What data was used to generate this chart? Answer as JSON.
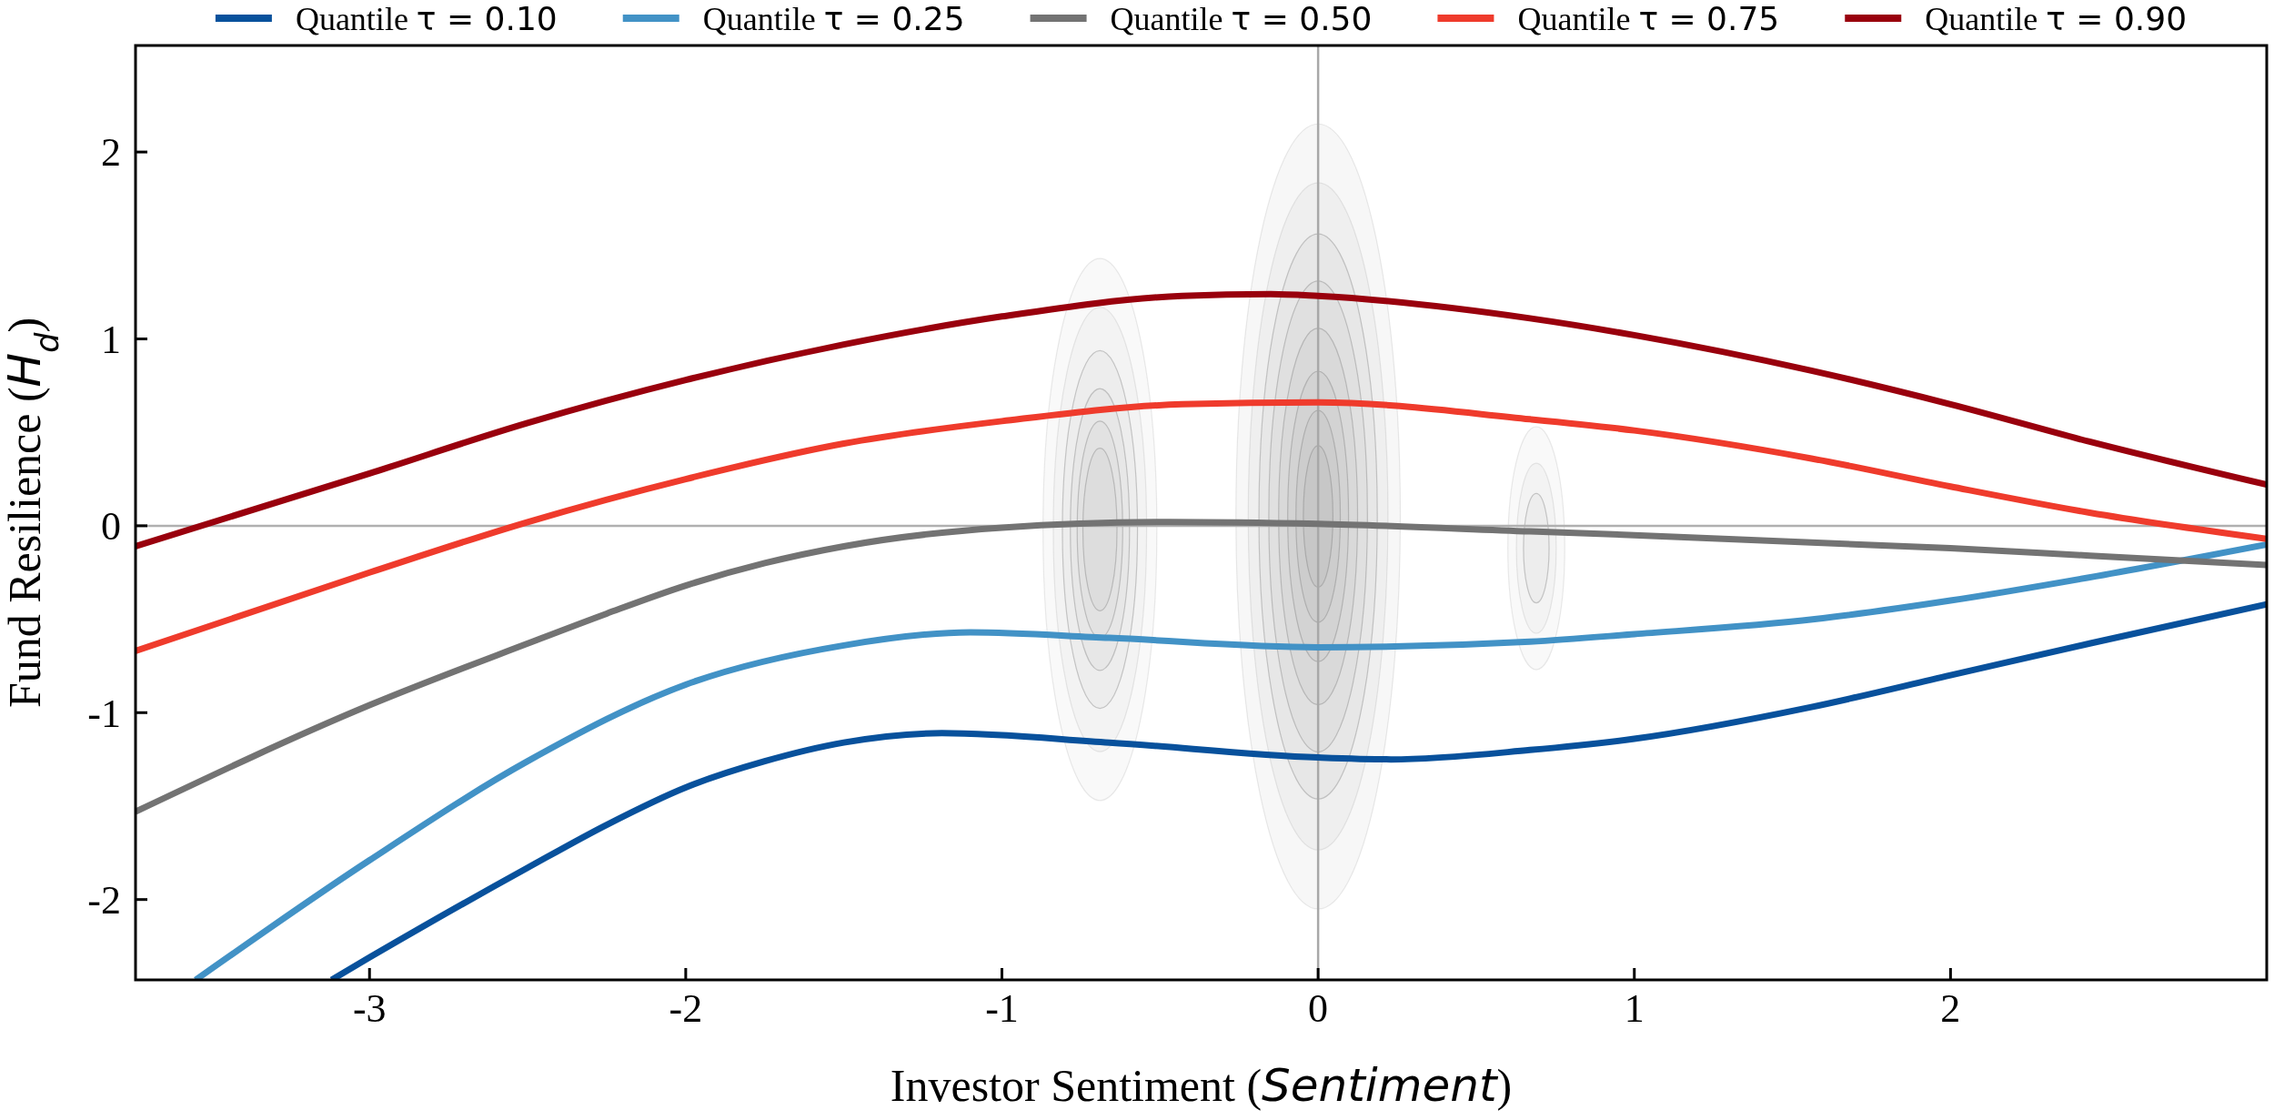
{
  "chart_data": {
    "type": "line",
    "xlabel": "Investor Sentiment (Sentiment)",
    "ylabel": "Fund Resilience (H$_{d}$)",
    "xlim": [
      -3.74,
      3.0
    ],
    "ylim": [
      -2.43,
      2.57
    ],
    "xticks": [
      -3,
      -2,
      -1,
      0,
      1,
      2
    ],
    "yticks": [
      -2,
      -1,
      0,
      1,
      2
    ],
    "grid": false,
    "legend": "top",
    "line_style": "solid",
    "ref_lines": [
      {
        "axis": "y",
        "value": 0,
        "color": "#b0b0b0"
      },
      {
        "axis": "x",
        "value": 0,
        "color": "#a8a8a8"
      }
    ],
    "series": [
      {
        "name": "Quantile τ = 0.10",
        "color": "#08519c",
        "x": [
          -3.12,
          -3.0,
          -2.5,
          -2.25,
          -2.0,
          -1.75,
          -1.5,
          -1.19,
          -0.66,
          0,
          0.23,
          0.67,
          1.0,
          1.56,
          2.0,
          2.44,
          3.0
        ],
        "values": [
          -2.43,
          -2.31,
          -1.83,
          -1.6,
          -1.4,
          -1.26,
          -1.16,
          -1.11,
          -1.16,
          -1.24,
          -1.25,
          -1.2,
          -1.14,
          -0.97,
          -0.8,
          -0.63,
          -0.42
        ]
      },
      {
        "name": "Quantile τ = 0.25",
        "color": "#4292c6",
        "x": [
          -3.55,
          -3.0,
          -2.5,
          -2.0,
          -1.5,
          -1.1,
          -0.66,
          0,
          0.67,
          1.0,
          1.57,
          2.0,
          2.46,
          3.0
        ],
        "values": [
          -2.43,
          -1.79,
          -1.26,
          -0.85,
          -0.64,
          -0.57,
          -0.6,
          -0.65,
          -0.62,
          -0.58,
          -0.5,
          -0.4,
          -0.27,
          -0.1
        ]
      },
      {
        "name": "Quantile τ = 0.50",
        "color": "#737373",
        "x": [
          -3.74,
          -3.0,
          -2.5,
          -2.25,
          -2.0,
          -1.75,
          -1.5,
          -1.0,
          -0.47,
          0,
          0.67,
          1.0,
          1.56,
          2.0,
          2.44,
          3.0
        ],
        "values": [
          -1.53,
          -0.96,
          -0.63,
          -0.47,
          -0.32,
          -0.2,
          -0.11,
          -0.01,
          0.02,
          0.01,
          -0.03,
          -0.05,
          -0.09,
          -0.12,
          -0.16,
          -0.21
        ]
      },
      {
        "name": "Quantile τ = 0.75",
        "color": "#ef3b2c",
        "x": [
          -3.74,
          -3.0,
          -2.5,
          -2.0,
          -1.5,
          -1.0,
          -0.43,
          0,
          0.67,
          1.0,
          1.56,
          2.0,
          2.44,
          3.0
        ],
        "values": [
          -0.67,
          -0.25,
          0.02,
          0.25,
          0.44,
          0.56,
          0.65,
          0.66,
          0.57,
          0.51,
          0.36,
          0.21,
          0.07,
          -0.07
        ]
      },
      {
        "name": "Quantile τ = 0.90",
        "color": "#99000d",
        "x": [
          -3.74,
          -3.0,
          -2.5,
          -2.0,
          -1.5,
          -1.0,
          -0.43,
          -0.15,
          0,
          0.67,
          1.0,
          1.56,
          2.0,
          2.44,
          3.0
        ],
        "values": [
          -0.11,
          0.28,
          0.55,
          0.78,
          0.97,
          1.12,
          1.23,
          1.24,
          1.23,
          1.11,
          1.02,
          0.83,
          0.65,
          0.45,
          0.22
        ]
      }
    ]
  }
}
